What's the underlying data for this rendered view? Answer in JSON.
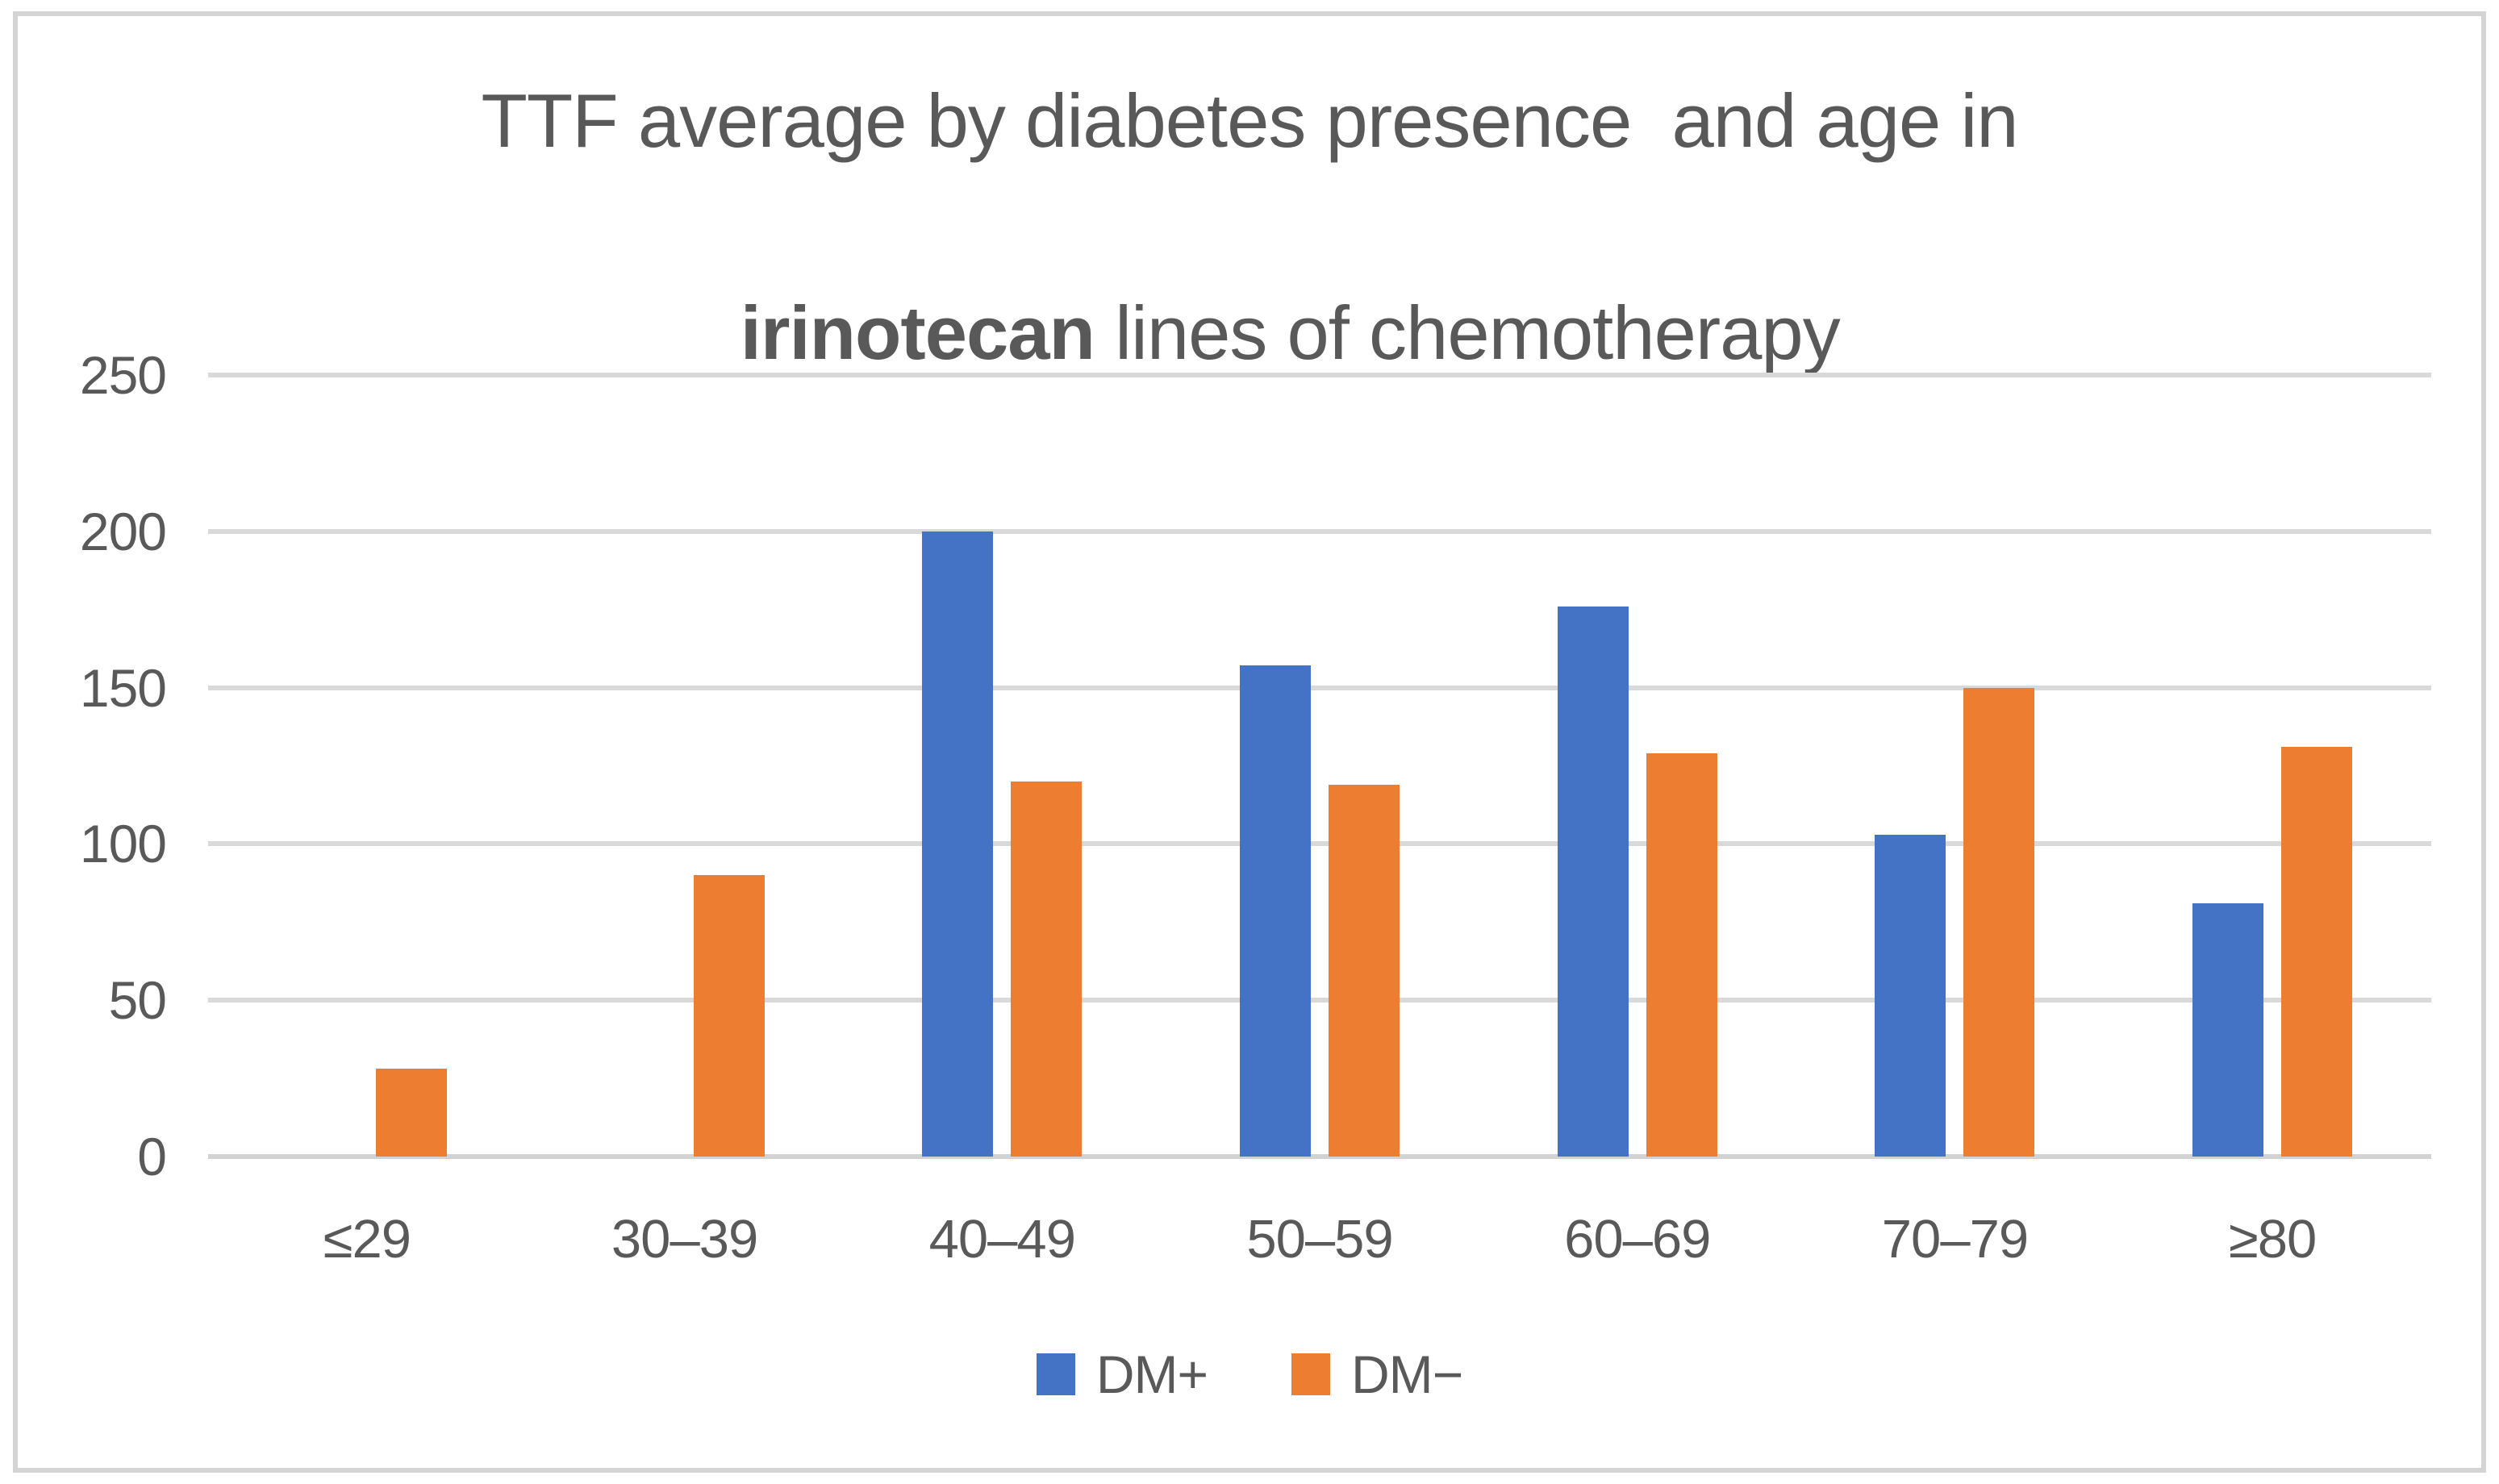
{
  "title": {
    "line1": "TTF average by diabetes presence  and age in",
    "line2_bold": "irinotecan",
    "line2_rest": " lines of chemotherapy"
  },
  "colors": {
    "dm_plus": "#4472C4",
    "dm_minus": "#ED7D31",
    "gridline": "#D9D9D9",
    "text": "#595959",
    "frame_border": "#D4D4D4"
  },
  "chart_data": {
    "type": "bar",
    "title": "TTF average by diabetes presence  and age in irinotecan lines of chemotherapy",
    "categories": [
      "≤29",
      "30–39",
      "40–49",
      "50–59",
      "60–69",
      "70–79",
      "≥80"
    ],
    "series": [
      {
        "name": "DM+",
        "color": "#4472C4",
        "values": [
          0,
          0,
          200,
          157,
          176,
          103,
          81
        ]
      },
      {
        "name": "DM−",
        "color": "#ED7D31",
        "values": [
          28,
          90,
          120,
          119,
          129,
          150,
          131
        ]
      }
    ],
    "xlabel": "",
    "ylabel": "",
    "ylim": [
      0,
      250
    ],
    "yticks": [
      0,
      50,
      100,
      150,
      200,
      250
    ],
    "grid": true,
    "legend_position": "bottom"
  }
}
